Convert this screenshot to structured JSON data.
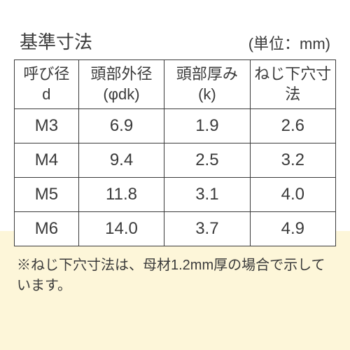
{
  "title": "基準寸法",
  "unit": "(単位：mm)",
  "columns": [
    {
      "line1": "呼び径",
      "line2": "d"
    },
    {
      "line1": "頭部外径",
      "line2": "(φdk)"
    },
    {
      "line1": "頭部厚み",
      "line2": "(k)"
    },
    {
      "line1": "ねじ下穴寸法",
      "line2": ""
    }
  ],
  "rows": [
    [
      "M3",
      "6.9",
      "1.9",
      "2.6"
    ],
    [
      "M4",
      "9.4",
      "2.5",
      "3.2"
    ],
    [
      "M5",
      "11.8",
      "3.1",
      "4.0"
    ],
    [
      "M6",
      "14.0",
      "3.7",
      "4.9"
    ]
  ],
  "note": "※ねじ下穴寸法は、母材1.2mm厚の場合で示しています。",
  "colors": {
    "text": "#3a3a3a",
    "border": "#3a3a3a",
    "background": "#ffffff",
    "accent_bg": "#fdf6d9"
  },
  "table_style": {
    "col_widths": [
      "20%",
      "26.66%",
      "26.66%",
      "26.66%"
    ],
    "font_size_cell": 24,
    "font_size_header": 22,
    "font_size_title": 26,
    "font_size_note": 20
  }
}
